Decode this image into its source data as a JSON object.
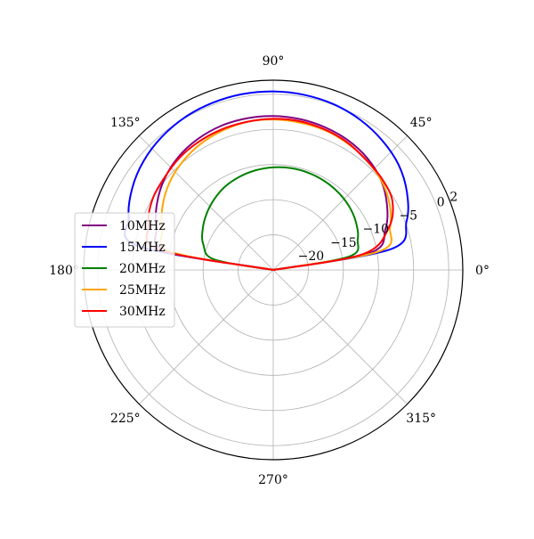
{
  "chart_data": {
    "type": "polar-line",
    "title": "",
    "angle_unit": "degrees",
    "angle_ticks": [
      "0°",
      "45°",
      "90°",
      "135°",
      "180°",
      "225°",
      "270°",
      "315°"
    ],
    "radial_ticks": [
      "−20",
      "−15",
      "−10",
      "−5",
      "0",
      "2"
    ],
    "radial_tick_values": [
      -20,
      -15,
      -10,
      -5,
      0,
      2
    ],
    "rlim": [
      -25,
      2
    ],
    "grid": true,
    "legend_position": "center-left",
    "angles_deg": [
      0,
      10,
      20,
      30,
      40,
      50,
      60,
      70,
      80,
      90,
      100,
      110,
      120,
      130,
      140,
      150,
      160,
      170,
      180
    ],
    "series": [
      {
        "name": "10MHz",
        "color": "#800080",
        "values": [
          -25,
          -11,
          -8,
          -6.3,
          -5,
          -4.2,
          -3.7,
          -3.4,
          -3.2,
          -3.1,
          -3.1,
          -3.2,
          -3.5,
          -4,
          -4.8,
          -5.9,
          -7.3,
          -9.6,
          -25
        ]
      },
      {
        "name": "15MHz",
        "color": "#0000ff",
        "values": [
          -25,
          -8,
          -4.8,
          -3,
          -1.7,
          -0.9,
          -0.3,
          0.1,
          0.3,
          0.4,
          0.4,
          0.3,
          0.1,
          -0.3,
          -0.9,
          -1.8,
          -3.1,
          -5.5,
          -25
        ]
      },
      {
        "name": "20MHz",
        "color": "#008000",
        "values": [
          -25,
          -14,
          -12.2,
          -11.4,
          -10.9,
          -10.6,
          -10.4,
          -10.3,
          -10.3,
          -10.4,
          -10.6,
          -10.9,
          -11.3,
          -11.9,
          -12.6,
          -13.4,
          -14.4,
          -16.5,
          -25
        ]
      },
      {
        "name": "25MHz",
        "color": "#ffa500",
        "values": [
          -25,
          -9.6,
          -7.3,
          -5.9,
          -5,
          -4.5,
          -4.1,
          -3.8,
          -3.7,
          -3.6,
          -3.6,
          -3.9,
          -4.3,
          -4.9,
          -5.7,
          -6.8,
          -8.2,
          -10.3,
          -25
        ]
      },
      {
        "name": "30MHz",
        "color": "#ff0000",
        "values": [
          -25,
          -12,
          -7.5,
          -5.4,
          -4.8,
          -4.5,
          -4,
          -3.7,
          -3.5,
          -3.5,
          -3.6,
          -3.7,
          -3.9,
          -4.2,
          -4.7,
          -5.1,
          -6.1,
          -8.5,
          -25
        ]
      }
    ]
  }
}
